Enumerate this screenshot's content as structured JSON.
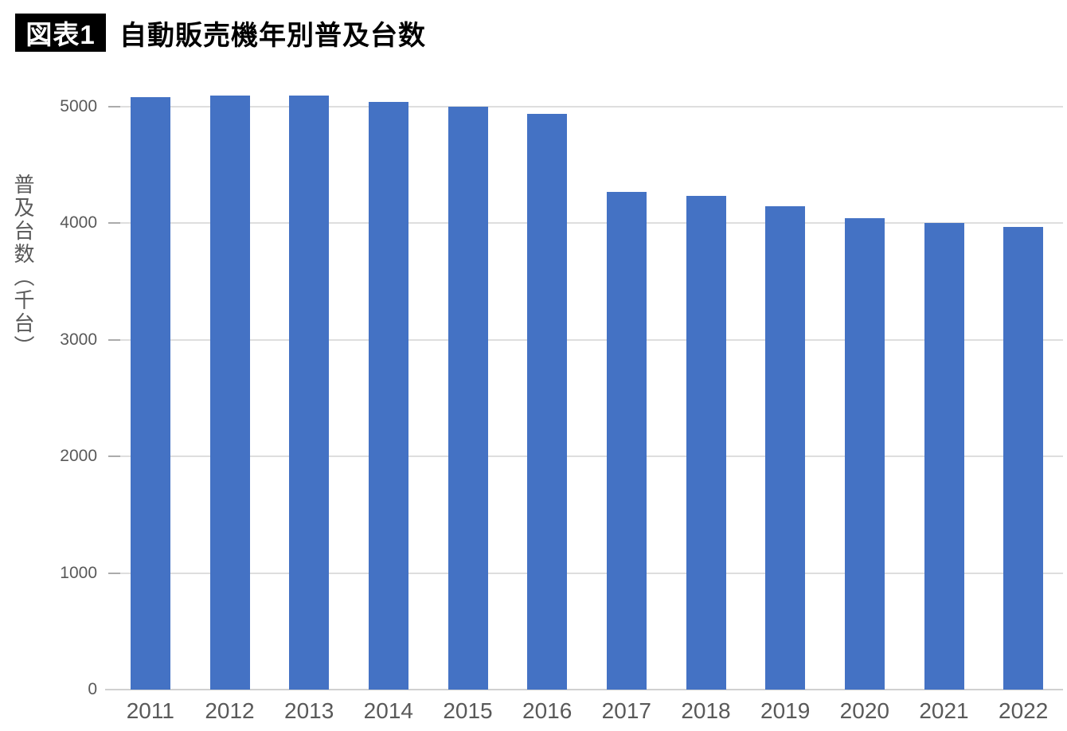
{
  "header": {
    "badge": "図表1",
    "title": "自動販売機年別普及台数"
  },
  "chart_data": {
    "type": "bar",
    "title": "自動販売機年別普及台数",
    "categories": [
      "2011",
      "2012",
      "2013",
      "2014",
      "2015",
      "2016",
      "2017",
      "2018",
      "2019",
      "2020",
      "2021",
      "2022"
    ],
    "values": [
      5084,
      5093,
      5094,
      5038,
      5002,
      4941,
      4271,
      4235,
      4149,
      4046,
      4004,
      3970
    ],
    "xlabel": "",
    "ylabel": "普及台数（千台）",
    "yticks": [
      0,
      1000,
      2000,
      3000,
      4000,
      5000
    ],
    "ylim": [
      0,
      5160
    ],
    "grid": true,
    "legend": "none",
    "bar_color": "#4472C4",
    "axis_text_color": "#595959",
    "gridline_color": "#DEDEDE",
    "baseline_color": "#D0D0D0",
    "tickmark_color": "#ABABAB"
  }
}
